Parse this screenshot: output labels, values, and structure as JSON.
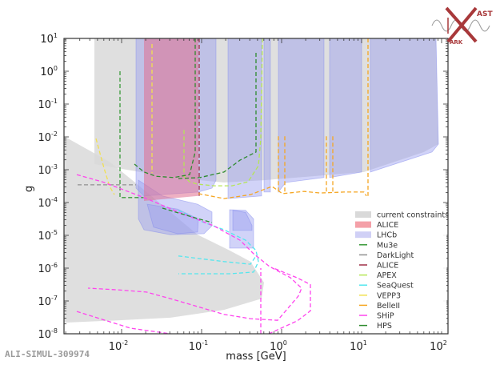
{
  "watermark": "ALI-SIMUL-309974",
  "logo": {
    "text_top": "AST",
    "text_bottom": "ARK",
    "color": "#a8383a"
  },
  "chart_data": {
    "type": "area",
    "title": "",
    "xlabel": "mass [GeV]",
    "ylabel": "g",
    "xscale": "log",
    "yscale": "log",
    "coordinate_units": "points are [log10(mass/GeV), log10(g)]",
    "xlim_log10": [
      -2.72,
      2.08
    ],
    "ylim_log10": [
      -8,
      1
    ],
    "x_ticks": [
      {
        "base": "10",
        "exp": "-2",
        "v": -2
      },
      {
        "base": "10",
        "exp": "-1",
        "v": -1
      },
      {
        "base": "10",
        "exp": "0",
        "v": 0
      },
      {
        "base": "10",
        "exp": "1",
        "v": 1
      },
      {
        "base": "10",
        "exp": "2",
        "v": 2
      }
    ],
    "y_ticks": [
      {
        "base": "10",
        "exp": "1",
        "v": 1
      },
      {
        "base": "10",
        "exp": "0",
        "v": 0
      },
      {
        "base": "10",
        "exp": "-1",
        "v": -1
      },
      {
        "base": "10",
        "exp": "-2",
        "v": -2
      },
      {
        "base": "10",
        "exp": "-3",
        "v": -3
      },
      {
        "base": "10",
        "exp": "-4",
        "v": -4
      },
      {
        "base": "10",
        "exp": "-5",
        "v": -5
      },
      {
        "base": "10",
        "exp": "-6",
        "v": -6
      },
      {
        "base": "10",
        "exp": "-7",
        "v": -7
      },
      {
        "base": "10",
        "exp": "-8",
        "v": -8
      }
    ],
    "grid": false,
    "legend_position": "lower-right",
    "regions": [
      {
        "name": "current constraints",
        "color": "#d9d9d9",
        "opacity": 0.85,
        "polygons": [
          [
            [
              -2.34,
              1
            ],
            [
              1.93,
              1
            ],
            [
              1.96,
              -2.22
            ],
            [
              1.78,
              -2.46
            ],
            [
              1.03,
              -3.07
            ],
            [
              -0.22,
              -3.32
            ],
            [
              -0.72,
              -3.39
            ],
            [
              -1.02,
              -3.32
            ],
            [
              -1.77,
              -3.07
            ],
            [
              -2.34,
              -2.83
            ]
          ],
          [
            [
              -2.72,
              -1.98
            ],
            [
              -2.34,
              -2.5
            ],
            [
              -2.14,
              -2.78
            ],
            [
              -1.84,
              -3.37
            ],
            [
              -1.05,
              -4.98
            ],
            [
              -0.65,
              -5.46
            ],
            [
              -0.39,
              -5.8
            ],
            [
              -0.22,
              -6.44
            ],
            [
              -0.25,
              -6.93
            ],
            [
              -0.72,
              -7.27
            ],
            [
              -1.39,
              -7.51
            ],
            [
              -2.05,
              -7.59
            ],
            [
              -2.72,
              -7.66
            ]
          ]
        ]
      },
      {
        "name": "LHCb",
        "color": "#9a9ef0",
        "opacity": 0.45,
        "polygons": [
          [
            [
              -1.82,
              1
            ],
            [
              -0.82,
              1
            ],
            [
              -0.82,
              -3.32
            ],
            [
              -0.87,
              -3.56
            ],
            [
              -1.04,
              -3.68
            ],
            [
              -1.72,
              -3.8
            ],
            [
              -1.82,
              -3.56
            ]
          ],
          [
            [
              -0.67,
              1
            ],
            [
              -0.25,
              1
            ],
            [
              -0.25,
              -3.8
            ],
            [
              -0.67,
              -3.88
            ]
          ],
          [
            [
              -0.22,
              1
            ],
            [
              -0.14,
              1
            ],
            [
              -0.14,
              -3.68
            ],
            [
              -0.22,
              -3.68
            ]
          ],
          [
            [
              -0.04,
              1
            ],
            [
              0.53,
              1
            ],
            [
              0.53,
              -3.24
            ],
            [
              0.05,
              -3.39
            ],
            [
              -0.04,
              -3.68
            ]
          ],
          [
            [
              0.6,
              1
            ],
            [
              1.0,
              1
            ],
            [
              1.0,
              -3.07
            ],
            [
              0.6,
              -3.24
            ]
          ],
          [
            [
              1.11,
              1
            ],
            [
              1.93,
              1
            ],
            [
              1.96,
              -2.22
            ],
            [
              1.88,
              -2.46
            ],
            [
              1.11,
              -3.07
            ]
          ],
          [
            [
              -1.79,
              -3.32
            ],
            [
              -1.49,
              -3.8
            ],
            [
              -1.05,
              -4.05
            ],
            [
              -0.87,
              -4.29
            ],
            [
              -0.87,
              -4.71
            ],
            [
              -0.97,
              -4.95
            ],
            [
              -1.39,
              -4.98
            ],
            [
              -1.72,
              -4.83
            ],
            [
              -1.79,
              -4.5
            ]
          ],
          [
            [
              -1.68,
              -4.05
            ],
            [
              -1.3,
              -4.2
            ],
            [
              -1.04,
              -4.5
            ],
            [
              -1.05,
              -4.9
            ],
            [
              -1.3,
              -4.95
            ],
            [
              -1.6,
              -4.75
            ]
          ],
          [
            [
              -0.65,
              -4.22
            ],
            [
              -0.45,
              -4.24
            ],
            [
              -0.35,
              -4.5
            ],
            [
              -0.35,
              -5.39
            ],
            [
              -0.65,
              -5.39
            ]
          ],
          [
            [
              -0.61,
              -4.24
            ],
            [
              -0.45,
              -4.3
            ],
            [
              -0.37,
              -4.7
            ],
            [
              -0.37,
              -4.85
            ],
            [
              -0.61,
              -4.85
            ]
          ]
        ]
      },
      {
        "name": "ALICE",
        "color": "#e07090",
        "opacity": 0.55,
        "polygons": [
          [
            [
              -1.72,
              1
            ],
            [
              -1.04,
              1
            ],
            [
              -1.04,
              -3.8
            ],
            [
              -1.72,
              -3.95
            ]
          ]
        ]
      }
    ],
    "lines": [
      {
        "name": "Mu3e",
        "color": "#3a9a3a",
        "paths": [
          [
            [
              -2.02,
              0
            ],
            [
              -2.02,
              -3.85
            ],
            [
              -1.72,
              -3.85
            ]
          ]
        ]
      },
      {
        "name": "DarkLight",
        "color": "#909090",
        "paths": [
          [
            [
              -2.55,
              -3.46
            ],
            [
              -1.82,
              -3.46
            ]
          ]
        ]
      },
      {
        "name": "ALICE",
        "color": "#a03048",
        "paths": [
          [
            [
              -1.03,
              1
            ],
            [
              -1.03,
              -3.8
            ]
          ]
        ]
      },
      {
        "name": "APEX",
        "color": "#b5e655",
        "paths": [
          [
            [
              -0.24,
              1
            ],
            [
              -0.26,
              -2.05
            ],
            [
              -0.29,
              -2.88
            ],
            [
              -0.42,
              -3.37
            ],
            [
              -0.62,
              -3.49
            ],
            [
              -0.85,
              -3.49
            ],
            [
              -1.05,
              -3.44
            ],
            [
              -1.15,
              -3.37
            ],
            [
              -1.22,
              -3.2
            ],
            [
              -1.22,
              -1.73
            ]
          ]
        ]
      },
      {
        "name": "SeaQuest",
        "color": "#55e6ee",
        "paths": [
          [
            [
              -1.29,
              -4.24
            ],
            [
              -0.99,
              -4.59
            ],
            [
              -0.72,
              -4.83
            ],
            [
              -0.45,
              -5.15
            ],
            [
              -0.32,
              -5.46
            ],
            [
              -0.29,
              -5.8
            ],
            [
              -0.35,
              -6.12
            ],
            [
              -0.65,
              -6.17
            ],
            [
              -1.29,
              -6.17
            ]
          ],
          [
            [
              -1.29,
              -5.63
            ],
            [
              -0.72,
              -5.8
            ],
            [
              -0.39,
              -5.88
            ],
            [
              -0.32,
              -5.63
            ]
          ]
        ]
      },
      {
        "name": "VEPP3",
        "color": "#f2e050",
        "paths": [
          [
            [
              -2.32,
              -2.05
            ],
            [
              -2.22,
              -2.95
            ],
            [
              -2.15,
              -3.51
            ],
            [
              -2.09,
              -3.76
            ]
          ],
          [
            [
              -1.62,
              0.83
            ],
            [
              -1.62,
              -3.1
            ]
          ]
        ]
      },
      {
        "name": "BelleII",
        "color": "#f5a623",
        "paths": [
          [
            [
              -1.04,
              -3.73
            ],
            [
              -0.72,
              -3.88
            ],
            [
              -0.39,
              -3.76
            ],
            [
              -0.12,
              -3.51
            ],
            [
              0.01,
              -3.73
            ],
            [
              0.28,
              -3.66
            ],
            [
              0.48,
              -3.71
            ],
            [
              0.78,
              -3.68
            ],
            [
              1.03,
              -3.68
            ],
            [
              1.06,
              -3.8
            ]
          ],
          [
            [
              -0.04,
              -1.98
            ],
            [
              -0.04,
              -3.73
            ]
          ],
          [
            [
              0.04,
              -1.98
            ],
            [
              0.04,
              -3.73
            ]
          ],
          [
            [
              0.56,
              -1.98
            ],
            [
              0.56,
              -3.68
            ]
          ],
          [
            [
              0.64,
              -1.98
            ],
            [
              0.64,
              -3.68
            ]
          ],
          [
            [
              1.08,
              1
            ],
            [
              1.08,
              -3.8
            ]
          ]
        ]
      },
      {
        "name": "SHiP",
        "color": "#ff44ee",
        "paths": [
          [
            [
              -2.56,
              -3.15
            ],
            [
              -2.24,
              -3.37
            ],
            [
              -1.72,
              -3.85
            ],
            [
              -1.29,
              -4.29
            ],
            [
              -0.85,
              -4.71
            ],
            [
              -0.52,
              -5.15
            ],
            [
              -0.35,
              -5.56
            ],
            [
              -0.15,
              -5.95
            ],
            [
              0.11,
              -6.29
            ],
            [
              0.25,
              -6.61
            ],
            [
              0.21,
              -6.85
            ],
            [
              -0.05,
              -7.59
            ],
            [
              -0.39,
              -7.54
            ],
            [
              -0.72,
              -7.41
            ],
            [
              -1.05,
              -7.17
            ],
            [
              -1.39,
              -6.93
            ],
            [
              -1.69,
              -6.73
            ],
            [
              -2.05,
              -6.66
            ],
            [
              -2.42,
              -6.61
            ]
          ],
          [
            [
              -2.56,
              -7.32
            ],
            [
              -1.89,
              -7.83
            ],
            [
              -1.39,
              -8.0
            ]
          ],
          [
            [
              -0.26,
              -8
            ],
            [
              -0.26,
              -6.0
            ]
          ],
          [
            [
              -0.16,
              -8
            ],
            [
              0.2,
              -7.6
            ],
            [
              0.36,
              -7.3
            ],
            [
              0.36,
              -6.5
            ],
            [
              0.2,
              -6.3
            ],
            [
              -0.1,
              -6.0
            ]
          ]
        ]
      },
      {
        "name": "HPS",
        "color": "#2e8b2e",
        "paths": [
          [
            [
              -1.84,
              -2.83
            ],
            [
              -1.72,
              -3.07
            ],
            [
              -1.57,
              -3.2
            ],
            [
              -1.35,
              -3.24
            ],
            [
              -1.15,
              -3.15
            ],
            [
              -1.08,
              -2.46
            ],
            [
              -1.08,
              1
            ]
          ],
          [
            [
              -1.29,
              -3.27
            ],
            [
              -1.02,
              -3.24
            ],
            [
              -0.72,
              -3.07
            ],
            [
              -0.52,
              -2.71
            ],
            [
              -0.32,
              -2.46
            ],
            [
              -0.32,
              0.59
            ]
          ],
          [
            [
              -1.49,
              -4.17
            ],
            [
              -1.05,
              -4.49
            ],
            [
              -0.87,
              -4.61
            ]
          ]
        ]
      }
    ],
    "legend": [
      {
        "label": "current constraints",
        "kind": "patch",
        "color": "#d9d9d9"
      },
      {
        "label": "ALICE",
        "kind": "patch",
        "color": "#f4a0a8"
      },
      {
        "label": "LHCb",
        "kind": "patch",
        "color": "#d0d0f6"
      },
      {
        "label": "Mu3e",
        "kind": "line",
        "color": "#3a9a3a"
      },
      {
        "label": "DarkLight",
        "kind": "line",
        "color": "#909090"
      },
      {
        "label": "ALICE",
        "kind": "line",
        "color": "#a03048"
      },
      {
        "label": "APEX",
        "kind": "line",
        "color": "#b5e655"
      },
      {
        "label": "SeaQuest",
        "kind": "line",
        "color": "#55e6ee"
      },
      {
        "label": "VEPP3",
        "kind": "line",
        "color": "#f2e050"
      },
      {
        "label": "BelleII",
        "kind": "line",
        "color": "#f5a623"
      },
      {
        "label": "SHiP",
        "kind": "line",
        "color": "#ff44ee"
      },
      {
        "label": "HPS",
        "kind": "line",
        "color": "#2e8b2e"
      }
    ]
  }
}
